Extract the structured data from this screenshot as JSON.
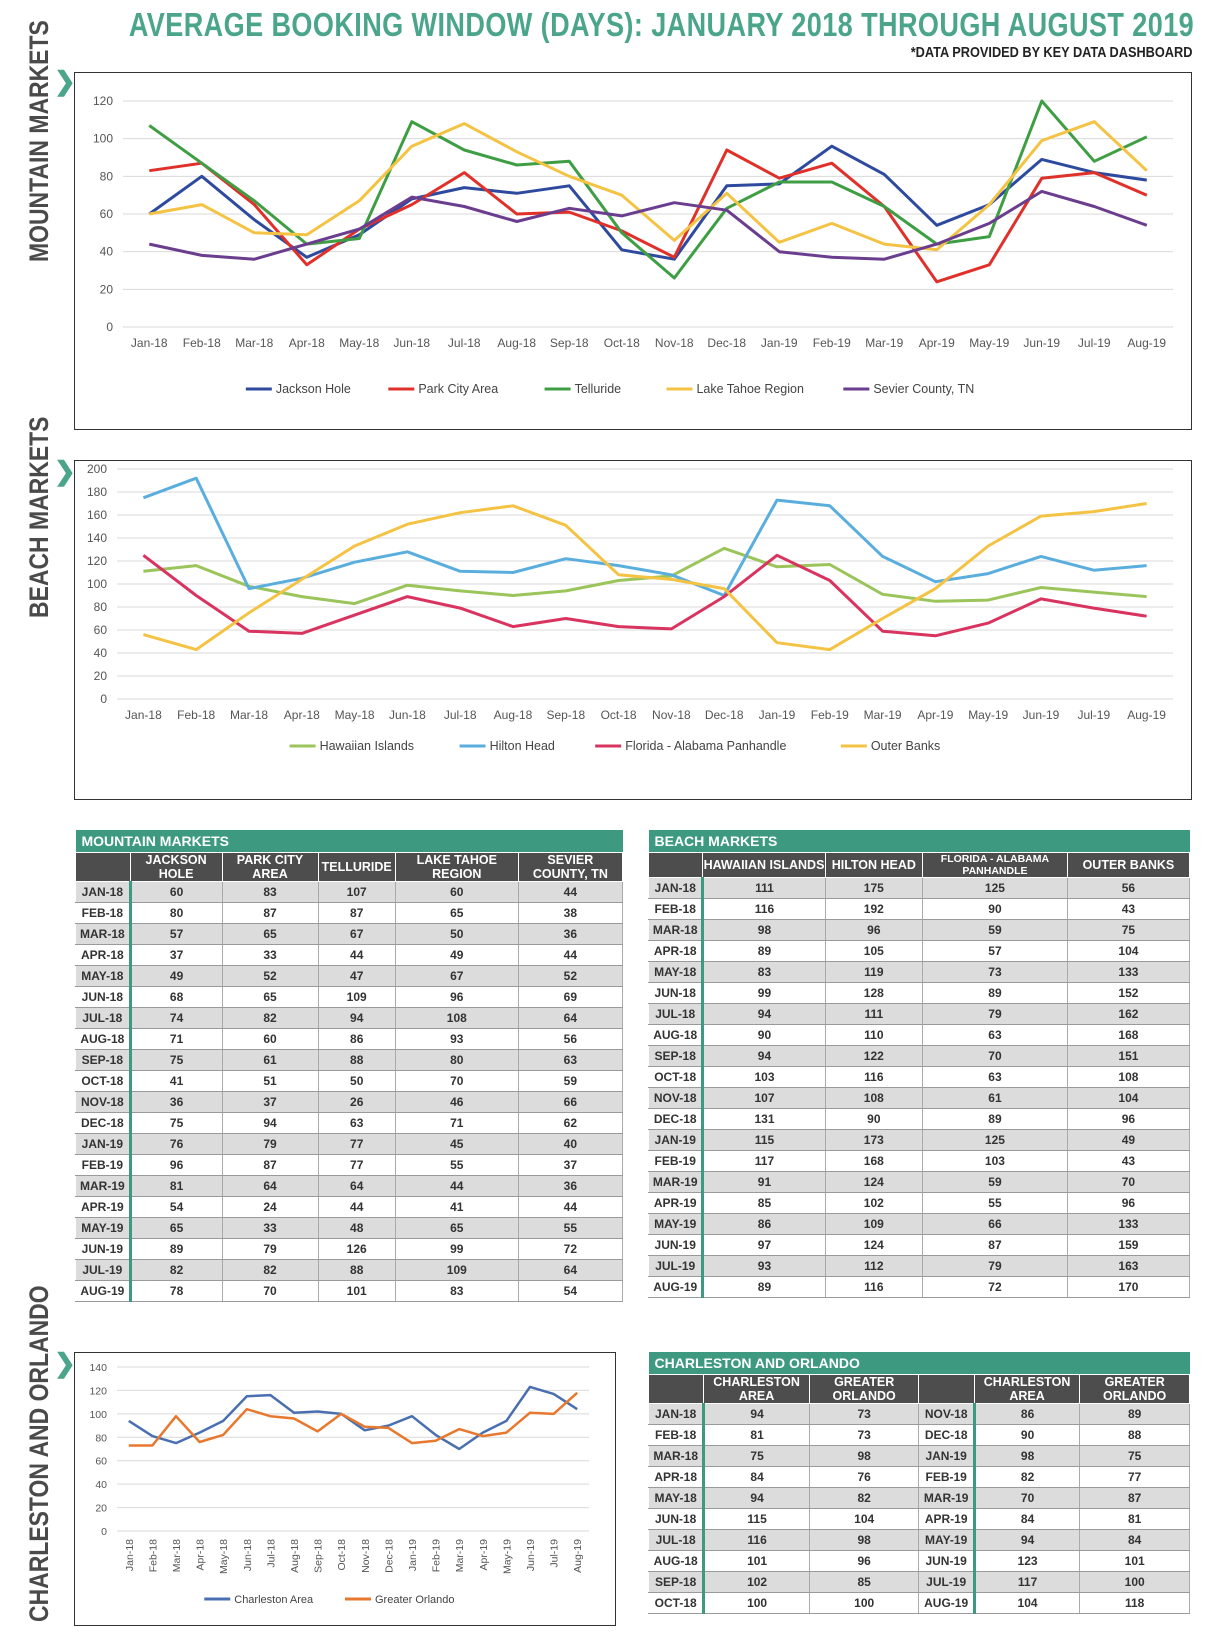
{
  "title": "AVERAGE BOOKING WINDOW (DAYS): JANUARY 2018 THROUGH AUGUST 2019",
  "subtitle": "*DATA PROVIDED BY KEY DATA DASHBOARD",
  "sections": {
    "mountain": "MOUNTAIN MARKETS",
    "beach": "BEACH MARKETS",
    "chorl": "CHARLESTON AND ORLANDO"
  },
  "chart_data": [
    {
      "type": "line",
      "x": [
        "Jan-18",
        "Feb-18",
        "Mar-18",
        "Apr-18",
        "May-18",
        "Jun-18",
        "Jul-18",
        "Aug-18",
        "Sep-18",
        "Oct-18",
        "Nov-18",
        "Dec-18",
        "Jan-19",
        "Feb-19",
        "Mar-19",
        "Apr-19",
        "May-19",
        "Jun-19",
        "Jul-19",
        "Aug-19"
      ],
      "ylim": [
        0,
        120
      ],
      "yticks": [
        0,
        20,
        40,
        60,
        80,
        100,
        120
      ],
      "legend": "bottom",
      "series": [
        {
          "name": "Jackson Hole",
          "color": "#2e4a9e",
          "values": [
            60,
            80,
            57,
            37,
            49,
            68,
            74,
            71,
            75,
            41,
            36,
            75,
            76,
            96,
            81,
            54,
            65,
            89,
            82,
            78
          ]
        },
        {
          "name": "Park City Area",
          "color": "#e0302a",
          "values": [
            83,
            87,
            65,
            33,
            52,
            65,
            82,
            60,
            61,
            51,
            37,
            94,
            79,
            87,
            64,
            24,
            33,
            79,
            82,
            70
          ]
        },
        {
          "name": "Telluride",
          "color": "#3f9e44",
          "values": [
            107,
            87,
            67,
            44,
            47,
            109,
            94,
            86,
            88,
            50,
            26,
            63,
            77,
            77,
            64,
            44,
            48,
            126,
            88,
            101
          ]
        },
        {
          "name": "Lake Tahoe Region",
          "color": "#f4c344",
          "values": [
            60,
            65,
            50,
            49,
            67,
            96,
            108,
            93,
            80,
            70,
            46,
            71,
            45,
            55,
            44,
            41,
            65,
            99,
            109,
            83
          ]
        },
        {
          "name": "Sevier County, TN",
          "color": "#6a3d8f",
          "values": [
            44,
            38,
            36,
            44,
            52,
            69,
            64,
            56,
            63,
            59,
            66,
            62,
            40,
            37,
            36,
            44,
            55,
            72,
            64,
            54
          ]
        }
      ]
    },
    {
      "type": "line",
      "x": [
        "Jan-18",
        "Feb-18",
        "Mar-18",
        "Apr-18",
        "May-18",
        "Jun-18",
        "Jul-18",
        "Aug-18",
        "Sep-18",
        "Oct-18",
        "Nov-18",
        "Dec-18",
        "Jan-19",
        "Feb-19",
        "Mar-19",
        "Apr-19",
        "May-19",
        "Jun-19",
        "Jul-19",
        "Aug-19"
      ],
      "ylim": [
        0,
        200
      ],
      "yticks": [
        0,
        20,
        40,
        60,
        80,
        100,
        120,
        140,
        160,
        180,
        200
      ],
      "legend": "bottom",
      "series": [
        {
          "name": "Hawaiian Islands",
          "color": "#9bc45a",
          "values": [
            111,
            116,
            98,
            89,
            83,
            99,
            94,
            90,
            94,
            103,
            107,
            131,
            115,
            117,
            91,
            85,
            86,
            97,
            93,
            89
          ]
        },
        {
          "name": "Hilton Head",
          "color": "#5aaede",
          "values": [
            175,
            192,
            96,
            105,
            119,
            128,
            111,
            110,
            122,
            116,
            108,
            90,
            173,
            168,
            124,
            102,
            109,
            124,
            112,
            116
          ]
        },
        {
          "name": "Florida - Alabama Panhandle",
          "color": "#d8345f",
          "values": [
            125,
            90,
            59,
            57,
            73,
            89,
            79,
            63,
            70,
            63,
            61,
            89,
            125,
            103,
            59,
            55,
            66,
            87,
            79,
            72
          ]
        },
        {
          "name": "Outer Banks",
          "color": "#f4c344",
          "values": [
            56,
            43,
            75,
            104,
            133,
            152,
            162,
            168,
            151,
            108,
            104,
            96,
            49,
            43,
            70,
            96,
            133,
            159,
            163,
            170
          ]
        }
      ]
    },
    {
      "type": "line",
      "x": [
        "Jan-18",
        "Feb-18",
        "Mar-18",
        "Apr-18",
        "May-18",
        "Jun-18",
        "Jul-18",
        "Aug-18",
        "Sep-18",
        "Oct-18",
        "Nov-18",
        "Dec-18",
        "Jan-19",
        "Feb-19",
        "Mar-19",
        "Apr-19",
        "May-19",
        "Jun-19",
        "Jul-19",
        "Aug-19"
      ],
      "ylim": [
        0,
        140
      ],
      "yticks": [
        0,
        20,
        40,
        60,
        80,
        100,
        120,
        140
      ],
      "legend": "bottom",
      "series": [
        {
          "name": "Charleston Area",
          "color": "#4a6fb0",
          "values": [
            94,
            81,
            75,
            84,
            94,
            115,
            116,
            101,
            102,
            100,
            86,
            90,
            98,
            82,
            70,
            84,
            94,
            123,
            117,
            104
          ]
        },
        {
          "name": "Greater Orlando",
          "color": "#e8782e",
          "values": [
            73,
            73,
            98,
            76,
            82,
            104,
            98,
            96,
            85,
            100,
            89,
            88,
            75,
            77,
            87,
            81,
            84,
            101,
            100,
            118
          ]
        }
      ]
    }
  ],
  "mountain_table": {
    "title": "MOUNTAIN MARKETS",
    "columns": [
      "JACKSON HOLE",
      "PARK CITY AREA",
      "TELLURIDE",
      "LAKE TAHOE REGION",
      "SEVIER COUNTY, TN"
    ],
    "rows": [
      [
        "JAN-18",
        "60",
        "83",
        "107",
        "60",
        "44"
      ],
      [
        "FEB-18",
        "80",
        "87",
        "87",
        "65",
        "38"
      ],
      [
        "MAR-18",
        "57",
        "65",
        "67",
        "50",
        "36"
      ],
      [
        "APR-18",
        "37",
        "33",
        "44",
        "49",
        "44"
      ],
      [
        "MAY-18",
        "49",
        "52",
        "47",
        "67",
        "52"
      ],
      [
        "JUN-18",
        "68",
        "65",
        "109",
        "96",
        "69"
      ],
      [
        "JUL-18",
        "74",
        "82",
        "94",
        "108",
        "64"
      ],
      [
        "AUG-18",
        "71",
        "60",
        "86",
        "93",
        "56"
      ],
      [
        "SEP-18",
        "75",
        "61",
        "88",
        "80",
        "63"
      ],
      [
        "OCT-18",
        "41",
        "51",
        "50",
        "70",
        "59"
      ],
      [
        "NOV-18",
        "36",
        "37",
        "26",
        "46",
        "66"
      ],
      [
        "DEC-18",
        "75",
        "94",
        "63",
        "71",
        "62"
      ],
      [
        "JAN-19",
        "76",
        "79",
        "77",
        "45",
        "40"
      ],
      [
        "FEB-19",
        "96",
        "87",
        "77",
        "55",
        "37"
      ],
      [
        "MAR-19",
        "81",
        "64",
        "64",
        "44",
        "36"
      ],
      [
        "APR-19",
        "54",
        "24",
        "44",
        "41",
        "44"
      ],
      [
        "MAY-19",
        "65",
        "33",
        "48",
        "65",
        "55"
      ],
      [
        "JUN-19",
        "89",
        "79",
        "126",
        "99",
        "72"
      ],
      [
        "JUL-19",
        "82",
        "82",
        "88",
        "109",
        "64"
      ],
      [
        "AUG-19",
        "78",
        "70",
        "101",
        "83",
        "54"
      ]
    ]
  },
  "beach_table": {
    "title": "BEACH MARKETS",
    "columns": [
      "HAWAIIAN ISLANDS",
      "HILTON HEAD",
      "FLORIDA - ALABAMA PANHANDLE",
      "OUTER BANKS"
    ],
    "rows": [
      [
        "JAN-18",
        "111",
        "175",
        "125",
        "56"
      ],
      [
        "FEB-18",
        "116",
        "192",
        "90",
        "43"
      ],
      [
        "MAR-18",
        "98",
        "96",
        "59",
        "75"
      ],
      [
        "APR-18",
        "89",
        "105",
        "57",
        "104"
      ],
      [
        "MAY-18",
        "83",
        "119",
        "73",
        "133"
      ],
      [
        "JUN-18",
        "99",
        "128",
        "89",
        "152"
      ],
      [
        "JUL-18",
        "94",
        "111",
        "79",
        "162"
      ],
      [
        "AUG-18",
        "90",
        "110",
        "63",
        "168"
      ],
      [
        "SEP-18",
        "94",
        "122",
        "70",
        "151"
      ],
      [
        "OCT-18",
        "103",
        "116",
        "63",
        "108"
      ],
      [
        "NOV-18",
        "107",
        "108",
        "61",
        "104"
      ],
      [
        "DEC-18",
        "131",
        "90",
        "89",
        "96"
      ],
      [
        "JAN-19",
        "115",
        "173",
        "125",
        "49"
      ],
      [
        "FEB-19",
        "117",
        "168",
        "103",
        "43"
      ],
      [
        "MAR-19",
        "91",
        "124",
        "59",
        "70"
      ],
      [
        "APR-19",
        "85",
        "102",
        "55",
        "96"
      ],
      [
        "MAY-19",
        "86",
        "109",
        "66",
        "133"
      ],
      [
        "JUN-19",
        "97",
        "124",
        "87",
        "159"
      ],
      [
        "JUL-19",
        "93",
        "112",
        "79",
        "163"
      ],
      [
        "AUG-19",
        "89",
        "116",
        "72",
        "170"
      ]
    ]
  },
  "chorl_table": {
    "title": "CHARLESTON AND ORLANDO",
    "columns": [
      "CHARLESTON AREA",
      "GREATER ORLANDO",
      "CHARLESTON AREA",
      "GREATER ORLANDO"
    ],
    "rows": [
      [
        "JAN-18",
        "94",
        "73",
        "NOV-18",
        "86",
        "89"
      ],
      [
        "FEB-18",
        "81",
        "73",
        "DEC-18",
        "90",
        "88"
      ],
      [
        "MAR-18",
        "75",
        "98",
        "JAN-19",
        "98",
        "75"
      ],
      [
        "APR-18",
        "84",
        "76",
        "FEB-19",
        "82",
        "77"
      ],
      [
        "MAY-18",
        "94",
        "82",
        "MAR-19",
        "70",
        "87"
      ],
      [
        "JUN-18",
        "115",
        "104",
        "APR-19",
        "84",
        "81"
      ],
      [
        "JUL-18",
        "116",
        "98",
        "MAY-19",
        "94",
        "84"
      ],
      [
        "AUG-18",
        "101",
        "96",
        "JUN-19",
        "123",
        "101"
      ],
      [
        "SEP-18",
        "102",
        "85",
        "JUL-19",
        "117",
        "100"
      ],
      [
        "OCT-18",
        "100",
        "100",
        "AUG-19",
        "104",
        "118"
      ]
    ]
  }
}
